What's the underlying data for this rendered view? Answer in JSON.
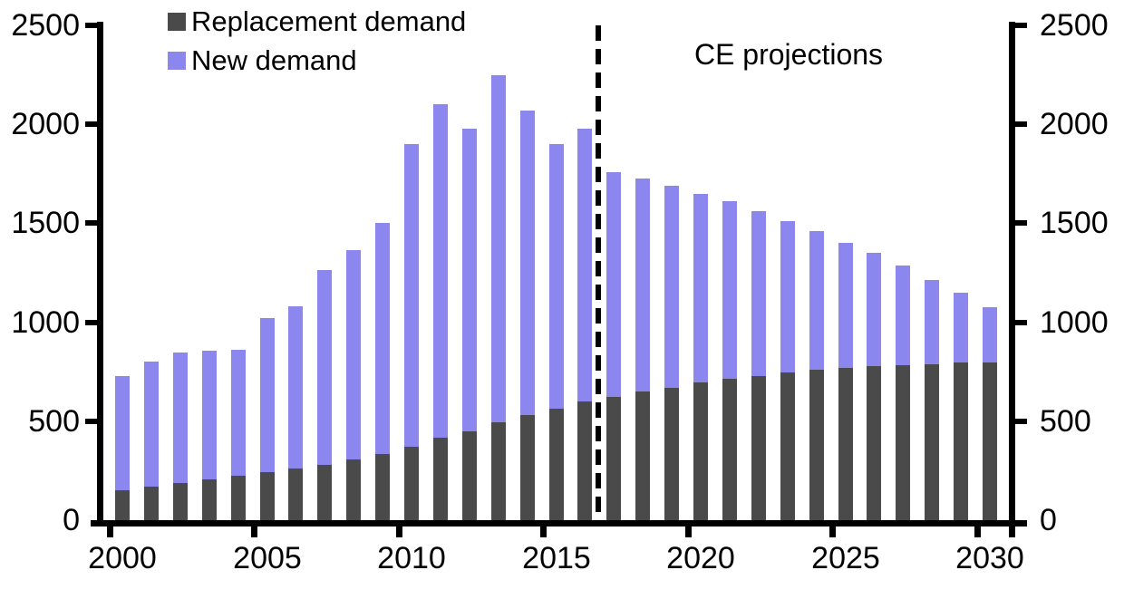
{
  "chart_data": {
    "type": "bar",
    "stacked": true,
    "title": "",
    "categories": [
      2000,
      2001,
      2002,
      2003,
      2004,
      2005,
      2006,
      2007,
      2008,
      2009,
      2010,
      2011,
      2012,
      2013,
      2014,
      2015,
      2016,
      2017,
      2018,
      2019,
      2020,
      2021,
      2022,
      2023,
      2024,
      2025,
      2026,
      2027,
      2028,
      2029,
      2030
    ],
    "series": [
      {
        "name": "Replacement demand",
        "color": "#4a4a4a",
        "values": [
          150,
          170,
          190,
          205,
          225,
          245,
          260,
          280,
          305,
          335,
          370,
          415,
          450,
          495,
          530,
          565,
          600,
          625,
          650,
          670,
          695,
          715,
          730,
          745,
          760,
          770,
          780,
          785,
          790,
          795,
          795
        ]
      },
      {
        "name": "New demand",
        "color": "#8b87ee",
        "values": [
          580,
          630,
          655,
          650,
          635,
          775,
          820,
          985,
          1060,
          1165,
          1530,
          1685,
          1530,
          1755,
          1540,
          1335,
          1380,
          1135,
          1075,
          1020,
          955,
          895,
          830,
          765,
          700,
          630,
          570,
          500,
          425,
          355,
          280
        ]
      }
    ],
    "y_axis": {
      "min": 0,
      "max": 2500,
      "tick_interval": 500,
      "ticks": [
        0,
        500,
        1000,
        1500,
        2000,
        2500
      ],
      "sides": "both",
      "labels": [
        "0",
        "500",
        "1000",
        "1500",
        "2000",
        "2500"
      ]
    },
    "x_axis": {
      "labeled_years": [
        2000,
        2005,
        2010,
        2015,
        2020,
        2025,
        2030
      ]
    },
    "annotations": {
      "projection_label": "CE projections",
      "projection_divider_between": [
        2016,
        2017
      ]
    },
    "legend_position": "top-left",
    "grid": false,
    "colors": {
      "axis": "#000000",
      "background": "#ffffff",
      "replacement": "#4a4a4a",
      "new": "#8b87ee"
    }
  },
  "legend": {
    "items": [
      {
        "label": "Replacement demand",
        "color": "#4a4a4a"
      },
      {
        "label": "New demand",
        "color": "#8b87ee"
      }
    ]
  }
}
